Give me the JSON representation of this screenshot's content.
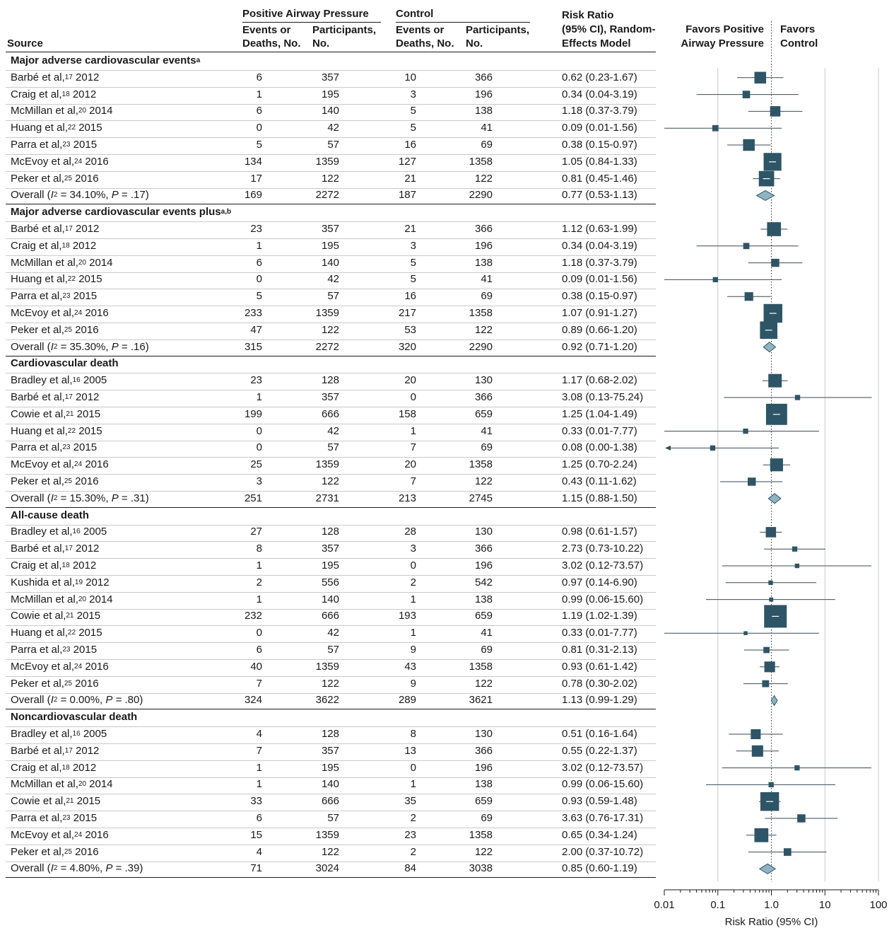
{
  "chart_data": {
    "type": "forest",
    "x_scale": "log",
    "xlim": [
      0.01,
      100
    ],
    "x_ticks": [
      "0.01",
      "0.1",
      "1.0",
      "10",
      "100"
    ],
    "xlabel": "Risk Ratio (95% CI)",
    "reference_line": 1,
    "grid": true,
    "headers": {
      "source": "Source",
      "group_pap": "Positive Airway Pressure",
      "group_control": "Control",
      "events_l1": "Events or",
      "events_l2": "Deaths, No.",
      "participants_l1": "Participants,",
      "participants_l2": "No.",
      "rr_l1": "Risk Ratio",
      "rr_l2": "(95% CI), Random-",
      "rr_l3": "Effects Model",
      "favors_left_l1": "Favors Positive",
      "favors_left_l2": "Airway Pressure",
      "favors_right_l1": "Favors",
      "favors_right_l2": "Control"
    },
    "sections": [
      {
        "title": "Major adverse cardiovascular events",
        "title_sup": "a",
        "studies": [
          {
            "author": "Barbé et al,",
            "ref": "17",
            "year": "2012",
            "pap_events": "6",
            "pap_n": "357",
            "ctrl_events": "10",
            "ctrl_n": "366",
            "rr_text": "0.62 (0.23-1.67)",
            "rr": 0.62,
            "lo": 0.23,
            "hi": 1.67,
            "weight": 14
          },
          {
            "author": "Craig et al,",
            "ref": "18",
            "year": "2012",
            "pap_events": "1",
            "pap_n": "195",
            "ctrl_events": "3",
            "ctrl_n": "196",
            "rr_text": "0.34 (0.04-3.19)",
            "rr": 0.34,
            "lo": 0.04,
            "hi": 3.19,
            "weight": 4
          },
          {
            "author": "McMillan et al,",
            "ref": "20",
            "year": "2014",
            "pap_events": "6",
            "pap_n": "140",
            "ctrl_events": "5",
            "ctrl_n": "138",
            "rr_text": "1.18 (0.37-3.79)",
            "rr": 1.18,
            "lo": 0.37,
            "hi": 3.79,
            "weight": 10
          },
          {
            "author": "Huang et al,",
            "ref": "22",
            "year": "2015",
            "pap_events": "0",
            "pap_n": "42",
            "ctrl_events": "5",
            "ctrl_n": "41",
            "rr_text": "0.09 (0.01-1.56)",
            "rr": 0.09,
            "lo": 0.01,
            "hi": 1.56,
            "weight": 2
          },
          {
            "author": "Parra et al,",
            "ref": "23",
            "year": "2015",
            "pap_events": "5",
            "pap_n": "57",
            "ctrl_events": "16",
            "ctrl_n": "69",
            "rr_text": "0.38 (0.15-0.97)",
            "rr": 0.38,
            "lo": 0.15,
            "hi": 0.97,
            "weight": 14
          },
          {
            "author": "McEvoy et al,",
            "ref": "24",
            "year": "2016",
            "pap_events": "134",
            "pap_n": "1359",
            "ctrl_events": "127",
            "ctrl_n": "1358",
            "rr_text": "1.05 (0.84-1.33)",
            "rr": 1.05,
            "lo": 0.84,
            "hi": 1.33,
            "weight": 40
          },
          {
            "author": "Peker et al,",
            "ref": "25",
            "year": "2016",
            "pap_events": "17",
            "pap_n": "122",
            "ctrl_events": "21",
            "ctrl_n": "122",
            "rr_text": "0.81 (0.45-1.46)",
            "rr": 0.81,
            "lo": 0.45,
            "hi": 1.46,
            "weight": 28
          }
        ],
        "overall": {
          "label_pre": "Overall (",
          "i2_symbol": "I",
          "i2_sup": "2",
          "stats": " = 34.10%, ",
          "p_symbol": "P",
          "p_text": " = .17)",
          "pap_events": "169",
          "pap_n": "2272",
          "ctrl_events": "187",
          "ctrl_n": "2290",
          "rr_text": "0.77 (0.53-1.13)",
          "rr": 0.77,
          "lo": 0.53,
          "hi": 1.13
        }
      },
      {
        "title": "Major adverse cardiovascular events plus",
        "title_sup": "a,b",
        "studies": [
          {
            "author": "Barbé et al,",
            "ref": "17",
            "year": "2012",
            "pap_events": "23",
            "pap_n": "357",
            "ctrl_events": "21",
            "ctrl_n": "366",
            "rr_text": "1.12 (0.63-1.99)",
            "rr": 1.12,
            "lo": 0.63,
            "hi": 1.99,
            "weight": 22
          },
          {
            "author": "Craig et al,",
            "ref": "18",
            "year": "2012",
            "pap_events": "1",
            "pap_n": "195",
            "ctrl_events": "3",
            "ctrl_n": "196",
            "rr_text": "0.34 (0.04-3.19)",
            "rr": 0.34,
            "lo": 0.04,
            "hi": 3.19,
            "weight": 2
          },
          {
            "author": "McMillan et al,",
            "ref": "20",
            "year": "2014",
            "pap_events": "6",
            "pap_n": "140",
            "ctrl_events": "5",
            "ctrl_n": "138",
            "rr_text": "1.18 (0.37-3.79)",
            "rr": 1.18,
            "lo": 0.37,
            "hi": 3.79,
            "weight": 5
          },
          {
            "author": "Huang et al,",
            "ref": "22",
            "year": "2015",
            "pap_events": "0",
            "pap_n": "42",
            "ctrl_events": "5",
            "ctrl_n": "41",
            "rr_text": "0.09 (0.01-1.56)",
            "rr": 0.09,
            "lo": 0.01,
            "hi": 1.56,
            "weight": 1
          },
          {
            "author": "Parra et al,",
            "ref": "23",
            "year": "2015",
            "pap_events": "5",
            "pap_n": "57",
            "ctrl_events": "16",
            "ctrl_n": "69",
            "rr_text": "0.38 (0.15-0.97)",
            "rr": 0.38,
            "lo": 0.15,
            "hi": 0.97,
            "weight": 6
          },
          {
            "author": "McEvoy et al,",
            "ref": "24",
            "year": "2016",
            "pap_events": "233",
            "pap_n": "1359",
            "ctrl_events": "217",
            "ctrl_n": "1358",
            "rr_text": "1.07 (0.91-1.27)",
            "rr": 1.07,
            "lo": 0.91,
            "hi": 1.27,
            "weight": 45
          },
          {
            "author": "Peker et al,",
            "ref": "25",
            "year": "2016",
            "pap_events": "47",
            "pap_n": "122",
            "ctrl_events": "53",
            "ctrl_n": "122",
            "rr_text": "0.89 (0.66-1.20)",
            "rr": 0.89,
            "lo": 0.66,
            "hi": 1.2,
            "weight": 38
          }
        ],
        "overall": {
          "label_pre": "Overall (",
          "i2_symbol": "I",
          "i2_sup": "2",
          "stats": " = 35.30%, ",
          "p_symbol": "P",
          "p_text": " = .16)",
          "pap_events": "315",
          "pap_n": "2272",
          "ctrl_events": "320",
          "ctrl_n": "2290",
          "rr_text": "0.92 (0.71-1.20)",
          "rr": 0.92,
          "lo": 0.71,
          "hi": 1.2
        }
      },
      {
        "title": "Cardiovascular death",
        "title_sup": "",
        "studies": [
          {
            "author": "Bradley et al,",
            "ref": "16",
            "year": "2005",
            "pap_events": "23",
            "pap_n": "128",
            "ctrl_events": "20",
            "ctrl_n": "130",
            "rr_text": "1.17 (0.68-2.02)",
            "rr": 1.17,
            "lo": 0.68,
            "hi": 2.02,
            "weight": 20
          },
          {
            "author": "Barbé et al,",
            "ref": "17",
            "year": "2012",
            "pap_events": "1",
            "pap_n": "357",
            "ctrl_events": "0",
            "ctrl_n": "366",
            "rr_text": "3.08 (0.13-75.24)",
            "rr": 3.08,
            "lo": 0.13,
            "hi": 75.24,
            "weight": 1
          },
          {
            "author": "Cowie et al,",
            "ref": "21",
            "year": "2015",
            "pap_events": "199",
            "pap_n": "666",
            "ctrl_events": "158",
            "ctrl_n": "659",
            "rr_text": "1.25 (1.04-1.49)",
            "rr": 1.25,
            "lo": 1.04,
            "hi": 1.49,
            "weight": 60
          },
          {
            "author": "Huang et al,",
            "ref": "22",
            "year": "2015",
            "pap_events": "0",
            "pap_n": "42",
            "ctrl_events": "1",
            "ctrl_n": "41",
            "rr_text": "0.33 (0.01-7.77)",
            "rr": 0.33,
            "lo": 0.01,
            "hi": 7.77,
            "weight": 1
          },
          {
            "author": "Parra et al,",
            "ref": "23",
            "year": "2015",
            "pap_events": "0",
            "pap_n": "57",
            "ctrl_events": "7",
            "ctrl_n": "69",
            "rr_text": "0.08 (0.00-1.38)",
            "rr": 0.08,
            "lo": 0.001,
            "hi": 1.38,
            "weight": 1
          },
          {
            "author": "McEvoy et al,",
            "ref": "24",
            "year": "2016",
            "pap_events": "25",
            "pap_n": "1359",
            "ctrl_events": "20",
            "ctrl_n": "1358",
            "rr_text": "1.25 (0.70-2.24)",
            "rr": 1.25,
            "lo": 0.7,
            "hi": 2.24,
            "weight": 18
          },
          {
            "author": "Peker et al,",
            "ref": "25",
            "year": "2016",
            "pap_events": "3",
            "pap_n": "122",
            "ctrl_events": "7",
            "ctrl_n": "122",
            "rr_text": "0.43 (0.11-1.62)",
            "rr": 0.43,
            "lo": 0.11,
            "hi": 1.62,
            "weight": 5
          }
        ],
        "overall": {
          "label_pre": "Overall (",
          "i2_symbol": "I",
          "i2_sup": "2",
          "stats": " = 15.30%, ",
          "p_symbol": "P",
          "p_text": " = .31)",
          "pap_events": "251",
          "pap_n": "2731",
          "ctrl_events": "213",
          "ctrl_n": "2745",
          "rr_text": "1.15 (0.88-1.50)",
          "rr": 1.15,
          "lo": 0.88,
          "hi": 1.5
        }
      },
      {
        "title": "All-cause death",
        "title_sup": "",
        "studies": [
          {
            "author": "Bradley et al,",
            "ref": "16",
            "year": "2005",
            "pap_events": "27",
            "pap_n": "128",
            "ctrl_events": "28",
            "ctrl_n": "130",
            "rr_text": "0.98 (0.61-1.57)",
            "rr": 0.98,
            "lo": 0.61,
            "hi": 1.57,
            "weight": 10
          },
          {
            "author": "Barbé et al,",
            "ref": "17",
            "year": "2012",
            "pap_events": "8",
            "pap_n": "357",
            "ctrl_events": "3",
            "ctrl_n": "366",
            "rr_text": "2.73 (0.73-10.22)",
            "rr": 2.73,
            "lo": 0.73,
            "hi": 10.22,
            "weight": 1
          },
          {
            "author": "Craig et al,",
            "ref": "18",
            "year": "2012",
            "pap_events": "1",
            "pap_n": "195",
            "ctrl_events": "0",
            "ctrl_n": "196",
            "rr_text": "3.02 (0.12-73.57)",
            "rr": 3.02,
            "lo": 0.12,
            "hi": 73.57,
            "weight": 0.5
          },
          {
            "author": "Kushida et al,",
            "ref": "19",
            "year": "2012",
            "pap_events": "2",
            "pap_n": "556",
            "ctrl_events": "2",
            "ctrl_n": "542",
            "rr_text": "0.97 (0.14-6.90)",
            "rr": 0.97,
            "lo": 0.14,
            "hi": 6.9,
            "weight": 0.5
          },
          {
            "author": "McMillan et al,",
            "ref": "20",
            "year": "2014",
            "pap_events": "1",
            "pap_n": "140",
            "ctrl_events": "1",
            "ctrl_n": "138",
            "rr_text": "0.99 (0.06-15.60)",
            "rr": 0.99,
            "lo": 0.06,
            "hi": 15.6,
            "weight": 0.3
          },
          {
            "author": "Cowie et al,",
            "ref": "21",
            "year": "2015",
            "pap_events": "232",
            "pap_n": "666",
            "ctrl_events": "193",
            "ctrl_n": "659",
            "rr_text": "1.19 (1.02-1.39)",
            "rr": 1.19,
            "lo": 1.02,
            "hi": 1.39,
            "weight": 70
          },
          {
            "author": "Huang et al,",
            "ref": "22",
            "year": "2015",
            "pap_events": "0",
            "pap_n": "42",
            "ctrl_events": "1",
            "ctrl_n": "41",
            "rr_text": "0.33 (0.01-7.77)",
            "rr": 0.33,
            "lo": 0.01,
            "hi": 7.77,
            "weight": 0.2
          },
          {
            "author": "Parra et al,",
            "ref": "23",
            "year": "2015",
            "pap_events": "6",
            "pap_n": "57",
            "ctrl_events": "9",
            "ctrl_n": "69",
            "rr_text": "0.81 (0.31-2.13)",
            "rr": 0.81,
            "lo": 0.31,
            "hi": 2.13,
            "weight": 2
          },
          {
            "author": "McEvoy et al,",
            "ref": "24",
            "year": "2016",
            "pap_events": "40",
            "pap_n": "1359",
            "ctrl_events": "43",
            "ctrl_n": "1358",
            "rr_text": "0.93 (0.61-1.42)",
            "rr": 0.93,
            "lo": 0.61,
            "hi": 1.42,
            "weight": 11
          },
          {
            "author": "Peker et al,",
            "ref": "25",
            "year": "2016",
            "pap_events": "7",
            "pap_n": "122",
            "ctrl_events": "9",
            "ctrl_n": "122",
            "rr_text": "0.78 (0.30-2.02)",
            "rr": 0.78,
            "lo": 0.3,
            "hi": 2.02,
            "weight": 3
          }
        ],
        "overall": {
          "label_pre": "Overall (",
          "i2_symbol": "I",
          "i2_sup": "2",
          "stats": " = 0.00%, ",
          "p_symbol": "P",
          "p_text": " = .80)",
          "pap_events": "324",
          "pap_n": "3622",
          "ctrl_events": "289",
          "ctrl_n": "3621",
          "rr_text": "1.13 (0.99-1.29)",
          "rr": 1.13,
          "lo": 0.99,
          "hi": 1.29
        }
      },
      {
        "title": "Noncardiovascular death",
        "title_sup": "",
        "studies": [
          {
            "author": "Bradley et al,",
            "ref": "16",
            "year": "2005",
            "pap_events": "4",
            "pap_n": "128",
            "ctrl_events": "8",
            "ctrl_n": "130",
            "rr_text": "0.51 (0.16-1.64)",
            "rr": 0.51,
            "lo": 0.16,
            "hi": 1.64,
            "weight": 9
          },
          {
            "author": "Barbé et al,",
            "ref": "17",
            "year": "2012",
            "pap_events": "7",
            "pap_n": "357",
            "ctrl_events": "13",
            "ctrl_n": "366",
            "rr_text": "0.55 (0.22-1.37)",
            "rr": 0.55,
            "lo": 0.22,
            "hi": 1.37,
            "weight": 13
          },
          {
            "author": "Craig et al,",
            "ref": "18",
            "year": "2012",
            "pap_events": "1",
            "pap_n": "195",
            "ctrl_events": "0",
            "ctrl_n": "196",
            "rr_text": "3.02 (0.12-73.57)",
            "rr": 3.02,
            "lo": 0.12,
            "hi": 73.57,
            "weight": 1
          },
          {
            "author": "McMillan et al,",
            "ref": "20",
            "year": "2014",
            "pap_events": "1",
            "pap_n": "140",
            "ctrl_events": "1",
            "ctrl_n": "138",
            "rr_text": "0.99 (0.06-15.60)",
            "rr": 0.99,
            "lo": 0.06,
            "hi": 15.6,
            "weight": 1
          },
          {
            "author": "Cowie et al,",
            "ref": "21",
            "year": "2015",
            "pap_events": "33",
            "pap_n": "666",
            "ctrl_events": "35",
            "ctrl_n": "659",
            "rr_text": "0.93 (0.59-1.48)",
            "rr": 0.93,
            "lo": 0.59,
            "hi": 1.48,
            "weight": 45
          },
          {
            "author": "Parra et al,",
            "ref": "23",
            "year": "2015",
            "pap_events": "6",
            "pap_n": "57",
            "ctrl_events": "2",
            "ctrl_n": "69",
            "rr_text": "3.63 (0.76-17.31)",
            "rr": 3.63,
            "lo": 0.76,
            "hi": 17.31,
            "weight": 5
          },
          {
            "author": "McEvoy et al,",
            "ref": "24",
            "year": "2016",
            "pap_events": "15",
            "pap_n": "1359",
            "ctrl_events": "23",
            "ctrl_n": "1358",
            "rr_text": "0.65 (0.34-1.24)",
            "rr": 0.65,
            "lo": 0.34,
            "hi": 1.24,
            "weight": 22
          },
          {
            "author": "Peker et al,",
            "ref": "25",
            "year": "2016",
            "pap_events": "4",
            "pap_n": "122",
            "ctrl_events": "2",
            "ctrl_n": "122",
            "rr_text": "2.00 (0.37-10.72)",
            "rr": 2.0,
            "lo": 0.37,
            "hi": 10.72,
            "weight": 4
          }
        ],
        "overall": {
          "label_pre": "Overall (",
          "i2_symbol": "I",
          "i2_sup": "2",
          "stats": " = 4.80%, ",
          "p_symbol": "P",
          "p_text": " = .39)",
          "pap_events": "71",
          "pap_n": "3024",
          "ctrl_events": "84",
          "ctrl_n": "3038",
          "rr_text": "0.85 (0.60-1.19)",
          "rr": 0.85,
          "lo": 0.6,
          "hi": 1.19
        }
      }
    ],
    "colors": {
      "marker": "#2e5566",
      "diamond_fill": "#8fb3c1",
      "diamond_stroke": "#2e5566",
      "ci_line": "#3b4a52",
      "grid": "#cccccc",
      "text": "#1a1a1a"
    }
  }
}
